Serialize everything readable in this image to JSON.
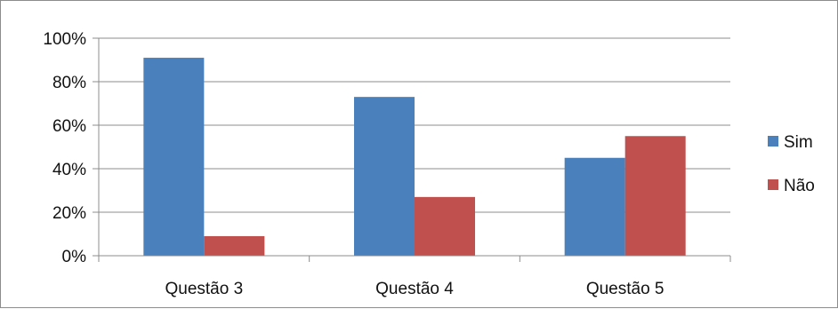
{
  "colors": {
    "sim": "#4a81bd",
    "nao": "#c0504e",
    "grid": "#8c8c8c",
    "axis": "#8c8c8c"
  },
  "chart_data": {
    "type": "bar",
    "title": "",
    "xlabel": "",
    "ylabel": "",
    "categories": [
      "Questão 3",
      "Questão 4",
      "Questão 5"
    ],
    "series": [
      {
        "name": "Sim",
        "values": [
          0.91,
          0.73,
          0.45
        ],
        "color": "#4a81bd"
      },
      {
        "name": "Não",
        "values": [
          0.09,
          0.27,
          0.55
        ],
        "color": "#c0504e"
      }
    ],
    "ylim": [
      0,
      1
    ],
    "yticks": [
      0,
      0.2,
      0.4,
      0.6,
      0.8,
      1.0
    ],
    "ytick_labels": [
      "0%",
      "20%",
      "40%",
      "60%",
      "80%",
      "100%"
    ],
    "grid": true,
    "legend_position": "right"
  }
}
